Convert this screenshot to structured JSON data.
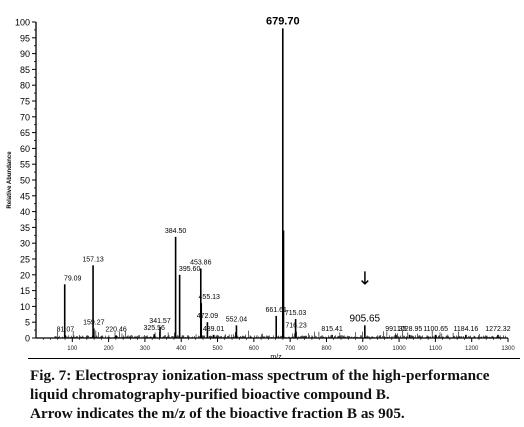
{
  "chart_data": {
    "type": "bar",
    "title": "",
    "xlabel": "m/z",
    "ylabel": "Relative Abundance",
    "xlim": [
      0,
      1300
    ],
    "ylim": [
      0,
      100
    ],
    "yticks": [
      0,
      5,
      10,
      15,
      20,
      25,
      30,
      35,
      40,
      45,
      50,
      55,
      60,
      65,
      70,
      75,
      80,
      85,
      90,
      95,
      100
    ],
    "xticks": [
      100,
      200,
      300,
      400,
      500,
      600,
      700,
      800,
      900,
      1000,
      1100,
      1200,
      1300
    ],
    "peaks": [
      {
        "x": 79.09,
        "y": 17,
        "label": "79.09"
      },
      {
        "x": 81.07,
        "y": 0.8,
        "label": "81.07"
      },
      {
        "x": 157.13,
        "y": 23,
        "label": "157.13"
      },
      {
        "x": 159.27,
        "y": 3,
        "label": "159.27"
      },
      {
        "x": 220.46,
        "y": 0.8,
        "label": "220.46"
      },
      {
        "x": 325.56,
        "y": 1.2,
        "label": "325.56"
      },
      {
        "x": 341.57,
        "y": 3.5,
        "label": "341.57"
      },
      {
        "x": 384.5,
        "y": 32,
        "label": "384.50"
      },
      {
        "x": 395.6,
        "y": 20,
        "label": "395.60"
      },
      {
        "x": 453.86,
        "y": 22,
        "label": "453.86"
      },
      {
        "x": 455.13,
        "y": 11,
        "label": "455.13"
      },
      {
        "x": 472.09,
        "y": 5,
        "label": "472.09"
      },
      {
        "x": 489.01,
        "y": 1,
        "label": "489.01"
      },
      {
        "x": 552.04,
        "y": 4,
        "label": "552.04"
      },
      {
        "x": 661.61,
        "y": 7,
        "label": "661.61"
      },
      {
        "x": 679.7,
        "y": 98,
        "label": "679.70"
      },
      {
        "x": 681.7,
        "y": 34,
        "label": ""
      },
      {
        "x": 715.03,
        "y": 6,
        "label": "715.03"
      },
      {
        "x": 716.23,
        "y": 2,
        "label": "716.23"
      },
      {
        "x": 815.41,
        "y": 1,
        "label": "815.41"
      },
      {
        "x": 905.65,
        "y": 4,
        "label": "905.65"
      },
      {
        "x": 991.35,
        "y": 1,
        "label": "991.35"
      },
      {
        "x": 1028.95,
        "y": 1,
        "label": "1028.95"
      },
      {
        "x": 1100.65,
        "y": 1,
        "label": "1100.65"
      },
      {
        "x": 1184.16,
        "y": 1,
        "label": "1184.16"
      },
      {
        "x": 1272.32,
        "y": 1,
        "label": "1272.32"
      }
    ],
    "arrow": {
      "x": 905.65,
      "symbol": "↓"
    },
    "grid": false,
    "legend": "none"
  },
  "caption": {
    "line1": "Fig. 7: Electrospray ionization-mass spectrum of the high-performance",
    "line2": "liquid chromatography-purified bioactive compound B.",
    "line3": "Arrow indicates the m/z of the bioactive fraction B as 905."
  }
}
